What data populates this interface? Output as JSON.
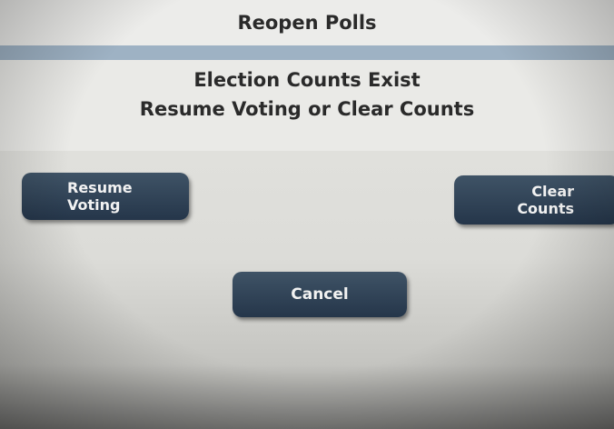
{
  "header": {
    "title": "Reopen Polls"
  },
  "message": {
    "line1": "Election Counts Exist",
    "line2": "Resume Voting or Clear Counts"
  },
  "buttons": [
    {
      "line1": "Resume",
      "line2": "Voting"
    },
    {
      "line1": "Clear",
      "line2": "Counts"
    },
    {
      "label": "Cancel"
    }
  ]
}
